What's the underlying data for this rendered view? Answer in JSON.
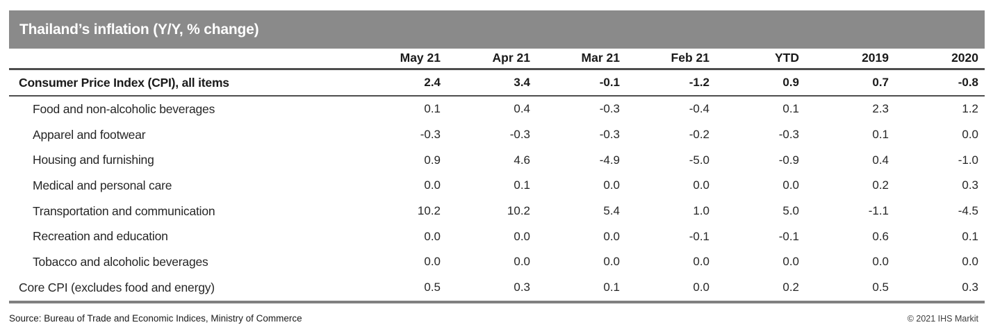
{
  "header": {
    "title": "Thailand’s inflation (Y/Y, % change)"
  },
  "chart_data": {
    "type": "table",
    "title": "Thailand’s inflation (Y/Y, % change)",
    "columns": [
      "May 21",
      "Apr 21",
      "Mar 21",
      "Feb 21",
      "YTD",
      "2019",
      "2020"
    ],
    "rows": [
      {
        "label": "Consumer Price Index (CPI), all items",
        "style": "total",
        "values": [
          "2.4",
          "3.4",
          "-0.1",
          "-1.2",
          "0.9",
          "0.7",
          "-0.8"
        ]
      },
      {
        "label": "Food and non-alcoholic beverages",
        "style": "sub",
        "values": [
          "0.1",
          "0.4",
          "-0.3",
          "-0.4",
          "0.1",
          "2.3",
          "1.2"
        ]
      },
      {
        "label": "Apparel and footwear",
        "style": "sub",
        "values": [
          "-0.3",
          "-0.3",
          "-0.3",
          "-0.2",
          "-0.3",
          "0.1",
          "0.0"
        ]
      },
      {
        "label": "Housing and furnishing",
        "style": "sub",
        "values": [
          "0.9",
          "4.6",
          "-4.9",
          "-5.0",
          "-0.9",
          "0.4",
          "-1.0"
        ]
      },
      {
        "label": "Medical and personal care",
        "style": "sub",
        "values": [
          "0.0",
          "0.1",
          "0.0",
          "0.0",
          "0.0",
          "0.2",
          "0.3"
        ]
      },
      {
        "label": "Transportation and communication",
        "style": "sub",
        "values": [
          "10.2",
          "10.2",
          "5.4",
          "1.0",
          "5.0",
          "-1.1",
          "-4.5"
        ]
      },
      {
        "label": "Recreation and education",
        "style": "sub",
        "values": [
          "0.0",
          "0.0",
          "0.0",
          "-0.1",
          "-0.1",
          "0.6",
          "0.1"
        ]
      },
      {
        "label": "Tobacco and alcoholic beverages",
        "style": "sub",
        "values": [
          "0.0",
          "0.0",
          "0.0",
          "0.0",
          "0.0",
          "0.0",
          "0.0"
        ]
      },
      {
        "label": "Core CPI (excludes food and energy)",
        "style": "core",
        "values": [
          "0.5",
          "0.3",
          "0.1",
          "0.0",
          "0.2",
          "0.5",
          "0.3"
        ]
      }
    ]
  },
  "footer": {
    "source": "Source: Bureau of Trade and Economic Indices, Ministry of Commerce",
    "copyright": "© 2021 IHS Markit"
  },
  "colors": {
    "title_bar_bg": "#8a8a8a",
    "title_text": "#ffffff",
    "rule_dark": "#4d4d4d",
    "rule_gray": "#808080",
    "body_text": "#262626"
  }
}
